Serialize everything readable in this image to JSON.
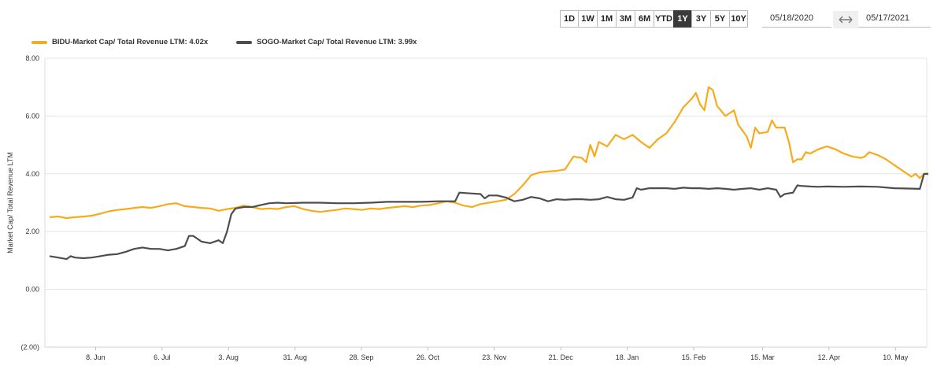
{
  "toolbar": {
    "ranges": [
      "1D",
      "1W",
      "1M",
      "3M",
      "6M",
      "YTD",
      "1Y",
      "3Y",
      "5Y",
      "10Y"
    ],
    "active": "1Y",
    "start_date": "05/18/2020",
    "end_date": "05/17/2021",
    "swap_icon": "double-arrow-icon"
  },
  "chart_data": {
    "type": "line",
    "ylabel": "Market Cap/ Total Revenue LTM",
    "ylim": [
      -2,
      8
    ],
    "y_ticks": [
      8,
      6,
      4,
      2,
      0,
      -2
    ],
    "y_tick_labels": [
      "8.00",
      "6.00",
      "4.00",
      "2.00",
      "0.00",
      "(2.00)"
    ],
    "x_tick_labels": [
      "8. Jun",
      "6. Jul",
      "3. Aug",
      "31. Aug",
      "28. Sep",
      "26. Oct",
      "23. Nov",
      "21. Dec",
      "18. Jan",
      "15. Feb",
      "15. Mar",
      "12. Apr",
      "10. May"
    ],
    "x_tick_positions": [
      0.0575,
      0.1329,
      0.2082,
      0.2836,
      0.3589,
      0.4343,
      0.5096,
      0.585,
      0.6603,
      0.7357,
      0.8137,
      0.8891,
      0.9645
    ],
    "legend_position": "top-left",
    "grid": true,
    "series": [
      {
        "name": "BIDU-Market Cap/ Total Revenue LTM: 4.02x",
        "color": "#f5ab1c",
        "points": [
          [
            0.0,
            2.5
          ],
          [
            0.01,
            2.52
          ],
          [
            0.02,
            2.47
          ],
          [
            0.03,
            2.5
          ],
          [
            0.04,
            2.52
          ],
          [
            0.05,
            2.55
          ],
          [
            0.06,
            2.62
          ],
          [
            0.07,
            2.7
          ],
          [
            0.08,
            2.75
          ],
          [
            0.09,
            2.78
          ],
          [
            0.1,
            2.82
          ],
          [
            0.11,
            2.85
          ],
          [
            0.12,
            2.82
          ],
          [
            0.13,
            2.88
          ],
          [
            0.14,
            2.95
          ],
          [
            0.15,
            2.98
          ],
          [
            0.16,
            2.88
          ],
          [
            0.17,
            2.85
          ],
          [
            0.18,
            2.82
          ],
          [
            0.19,
            2.8
          ],
          [
            0.2,
            2.72
          ],
          [
            0.21,
            2.78
          ],
          [
            0.22,
            2.82
          ],
          [
            0.23,
            2.9
          ],
          [
            0.24,
            2.85
          ],
          [
            0.25,
            2.78
          ],
          [
            0.26,
            2.8
          ],
          [
            0.27,
            2.78
          ],
          [
            0.28,
            2.85
          ],
          [
            0.29,
            2.88
          ],
          [
            0.3,
            2.78
          ],
          [
            0.31,
            2.72
          ],
          [
            0.32,
            2.68
          ],
          [
            0.33,
            2.72
          ],
          [
            0.34,
            2.75
          ],
          [
            0.35,
            2.8
          ],
          [
            0.36,
            2.78
          ],
          [
            0.37,
            2.75
          ],
          [
            0.38,
            2.8
          ],
          [
            0.39,
            2.78
          ],
          [
            0.4,
            2.82
          ],
          [
            0.41,
            2.85
          ],
          [
            0.42,
            2.88
          ],
          [
            0.43,
            2.85
          ],
          [
            0.44,
            2.9
          ],
          [
            0.45,
            2.92
          ],
          [
            0.46,
            2.98
          ],
          [
            0.47,
            3.05
          ],
          [
            0.48,
            3.0
          ],
          [
            0.49,
            2.9
          ],
          [
            0.5,
            2.85
          ],
          [
            0.51,
            2.95
          ],
          [
            0.52,
            3.0
          ],
          [
            0.53,
            3.05
          ],
          [
            0.54,
            3.1
          ],
          [
            0.55,
            3.3
          ],
          [
            0.56,
            3.6
          ],
          [
            0.57,
            3.95
          ],
          [
            0.58,
            4.05
          ],
          [
            0.59,
            4.08
          ],
          [
            0.6,
            4.1
          ],
          [
            0.61,
            4.15
          ],
          [
            0.62,
            4.6
          ],
          [
            0.63,
            4.55
          ],
          [
            0.635,
            4.4
          ],
          [
            0.64,
            5.0
          ],
          [
            0.645,
            4.6
          ],
          [
            0.65,
            5.1
          ],
          [
            0.66,
            4.95
          ],
          [
            0.67,
            5.35
          ],
          [
            0.68,
            5.2
          ],
          [
            0.69,
            5.35
          ],
          [
            0.7,
            5.1
          ],
          [
            0.71,
            4.9
          ],
          [
            0.72,
            5.2
          ],
          [
            0.73,
            5.4
          ],
          [
            0.74,
            5.8
          ],
          [
            0.75,
            6.3
          ],
          [
            0.76,
            6.6
          ],
          [
            0.765,
            6.8
          ],
          [
            0.77,
            6.4
          ],
          [
            0.775,
            6.2
          ],
          [
            0.78,
            7.0
          ],
          [
            0.785,
            6.9
          ],
          [
            0.79,
            6.35
          ],
          [
            0.8,
            6.0
          ],
          [
            0.81,
            6.2
          ],
          [
            0.815,
            5.7
          ],
          [
            0.82,
            5.5
          ],
          [
            0.825,
            5.3
          ],
          [
            0.83,
            4.9
          ],
          [
            0.835,
            5.6
          ],
          [
            0.84,
            5.4
          ],
          [
            0.85,
            5.45
          ],
          [
            0.855,
            5.85
          ],
          [
            0.86,
            5.6
          ],
          [
            0.87,
            5.6
          ],
          [
            0.875,
            5.1
          ],
          [
            0.88,
            4.4
          ],
          [
            0.885,
            4.5
          ],
          [
            0.89,
            4.5
          ],
          [
            0.895,
            4.75
          ],
          [
            0.9,
            4.7
          ],
          [
            0.91,
            4.85
          ],
          [
            0.92,
            4.95
          ],
          [
            0.93,
            4.85
          ],
          [
            0.94,
            4.7
          ],
          [
            0.95,
            4.6
          ],
          [
            0.96,
            4.55
          ],
          [
            0.965,
            4.6
          ],
          [
            0.97,
            4.75
          ],
          [
            0.98,
            4.65
          ],
          [
            0.99,
            4.5
          ],
          [
            0.995,
            4.4
          ],
          [
            1.0,
            4.3
          ],
          [
            1.01,
            4.1
          ],
          [
            1.02,
            3.9
          ],
          [
            1.025,
            4.0
          ],
          [
            1.03,
            3.85
          ],
          [
            1.035,
            4.0
          ],
          [
            1.04,
            4.02
          ]
        ]
      },
      {
        "name": "SOGO-Market Cap/ Total Revenue LTM: 3.99x",
        "color": "#4d4d4d",
        "points": [
          [
            0.0,
            1.15
          ],
          [
            0.01,
            1.1
          ],
          [
            0.02,
            1.05
          ],
          [
            0.025,
            1.15
          ],
          [
            0.03,
            1.1
          ],
          [
            0.04,
            1.08
          ],
          [
            0.05,
            1.1
          ],
          [
            0.06,
            1.15
          ],
          [
            0.07,
            1.2
          ],
          [
            0.08,
            1.22
          ],
          [
            0.09,
            1.3
          ],
          [
            0.1,
            1.4
          ],
          [
            0.11,
            1.45
          ],
          [
            0.12,
            1.4
          ],
          [
            0.13,
            1.4
          ],
          [
            0.14,
            1.35
          ],
          [
            0.15,
            1.4
          ],
          [
            0.16,
            1.5
          ],
          [
            0.165,
            1.85
          ],
          [
            0.17,
            1.85
          ],
          [
            0.175,
            1.75
          ],
          [
            0.18,
            1.65
          ],
          [
            0.19,
            1.6
          ],
          [
            0.2,
            1.7
          ],
          [
            0.205,
            1.6
          ],
          [
            0.21,
            2.0
          ],
          [
            0.215,
            2.6
          ],
          [
            0.22,
            2.8
          ],
          [
            0.23,
            2.85
          ],
          [
            0.24,
            2.85
          ],
          [
            0.25,
            2.92
          ],
          [
            0.26,
            2.98
          ],
          [
            0.27,
            3.0
          ],
          [
            0.28,
            2.98
          ],
          [
            0.3,
            3.0
          ],
          [
            0.32,
            3.0
          ],
          [
            0.34,
            2.98
          ],
          [
            0.36,
            2.98
          ],
          [
            0.38,
            3.0
          ],
          [
            0.4,
            3.03
          ],
          [
            0.42,
            3.03
          ],
          [
            0.44,
            3.03
          ],
          [
            0.46,
            3.05
          ],
          [
            0.48,
            3.05
          ],
          [
            0.485,
            3.35
          ],
          [
            0.5,
            3.32
          ],
          [
            0.51,
            3.3
          ],
          [
            0.515,
            3.15
          ],
          [
            0.52,
            3.25
          ],
          [
            0.53,
            3.25
          ],
          [
            0.54,
            3.18
          ],
          [
            0.55,
            3.05
          ],
          [
            0.56,
            3.1
          ],
          [
            0.57,
            3.2
          ],
          [
            0.58,
            3.15
          ],
          [
            0.59,
            3.05
          ],
          [
            0.6,
            3.12
          ],
          [
            0.61,
            3.1
          ],
          [
            0.62,
            3.12
          ],
          [
            0.63,
            3.12
          ],
          [
            0.64,
            3.1
          ],
          [
            0.65,
            3.12
          ],
          [
            0.66,
            3.2
          ],
          [
            0.67,
            3.12
          ],
          [
            0.68,
            3.1
          ],
          [
            0.69,
            3.18
          ],
          [
            0.695,
            3.5
          ],
          [
            0.7,
            3.45
          ],
          [
            0.71,
            3.5
          ],
          [
            0.72,
            3.5
          ],
          [
            0.73,
            3.5
          ],
          [
            0.74,
            3.48
          ],
          [
            0.75,
            3.52
          ],
          [
            0.76,
            3.5
          ],
          [
            0.77,
            3.5
          ],
          [
            0.78,
            3.48
          ],
          [
            0.79,
            3.5
          ],
          [
            0.8,
            3.48
          ],
          [
            0.81,
            3.45
          ],
          [
            0.82,
            3.48
          ],
          [
            0.83,
            3.5
          ],
          [
            0.84,
            3.45
          ],
          [
            0.85,
            3.5
          ],
          [
            0.86,
            3.45
          ],
          [
            0.865,
            3.2
          ],
          [
            0.87,
            3.3
          ],
          [
            0.88,
            3.35
          ],
          [
            0.885,
            3.6
          ],
          [
            0.89,
            3.58
          ],
          [
            0.9,
            3.56
          ],
          [
            0.91,
            3.55
          ],
          [
            0.92,
            3.56
          ],
          [
            0.94,
            3.55
          ],
          [
            0.96,
            3.56
          ],
          [
            0.98,
            3.55
          ],
          [
            1.0,
            3.5
          ],
          [
            1.03,
            3.48
          ],
          [
            1.035,
            4.0
          ],
          [
            1.04,
            3.99
          ]
        ]
      }
    ]
  }
}
